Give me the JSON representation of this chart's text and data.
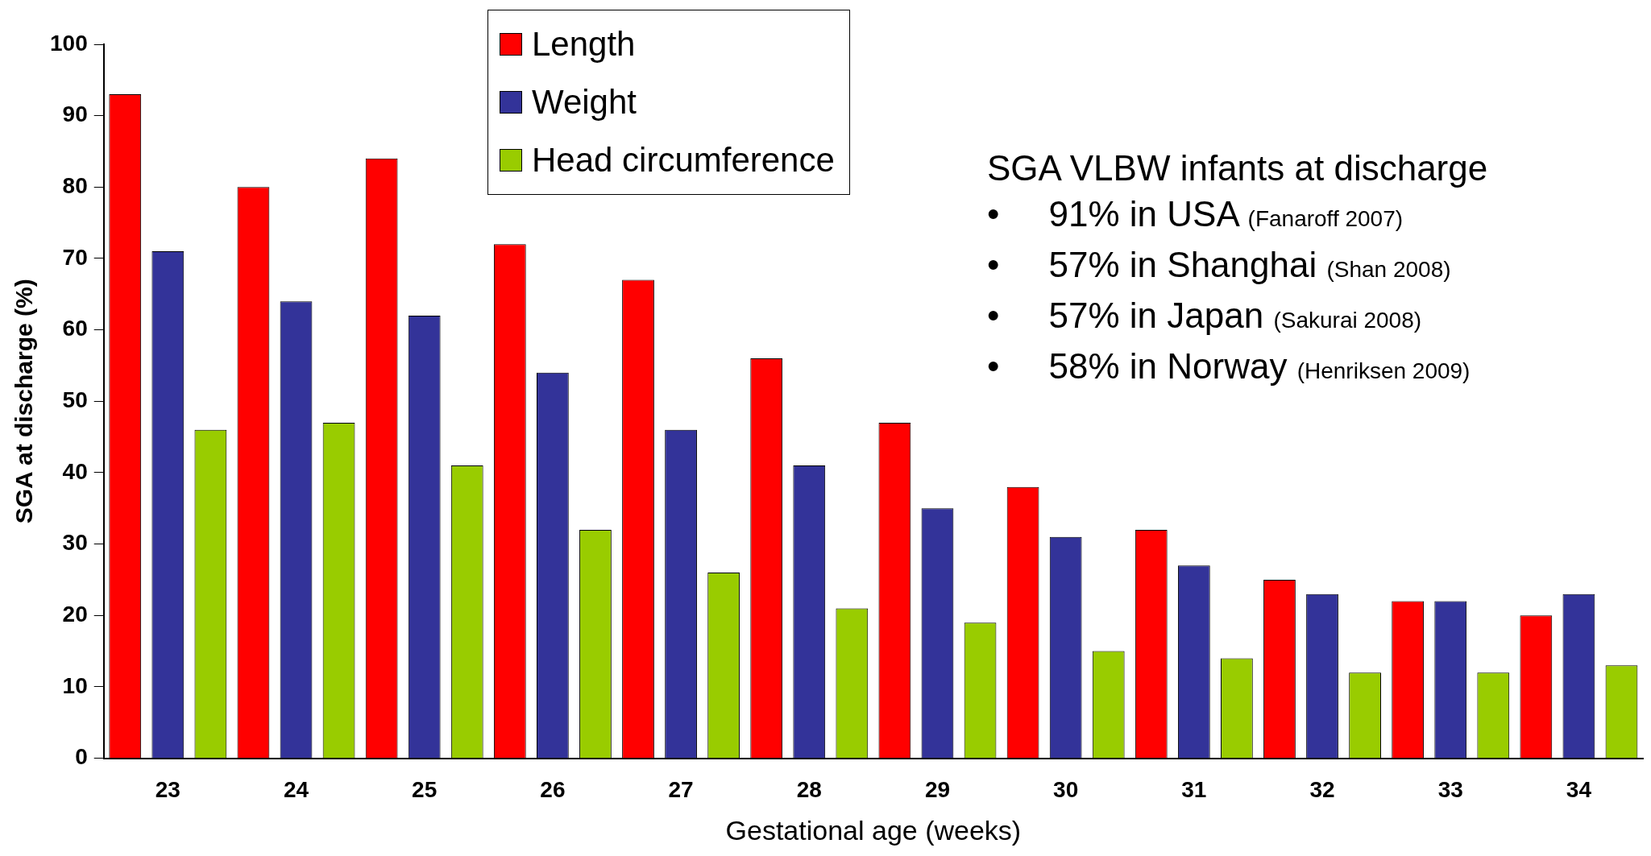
{
  "chart_data": {
    "type": "bar",
    "xlabel": "Gestational age (weeks)",
    "ylabel": "SGA at discharge (%)",
    "categories": [
      "23",
      "24",
      "25",
      "26",
      "27",
      "28",
      "29",
      "30",
      "31",
      "32",
      "33",
      "34"
    ],
    "series": [
      {
        "name": "Length",
        "color": "#ff0000",
        "values": [
          93,
          80,
          84,
          72,
          67,
          56,
          47,
          38,
          32,
          25,
          22,
          20
        ]
      },
      {
        "name": "Weight",
        "color": "#333399",
        "values": [
          71,
          64,
          62,
          54,
          46,
          41,
          35,
          31,
          27,
          23,
          22,
          23
        ]
      },
      {
        "name": "Head circumference",
        "color": "#99cc00",
        "values": [
          46,
          47,
          41,
          32,
          26,
          21,
          19,
          15,
          14,
          12,
          12,
          13
        ]
      }
    ],
    "ylim": [
      0,
      100
    ],
    "yticks": [
      0,
      10,
      20,
      30,
      40,
      50,
      60,
      70,
      80,
      90,
      100
    ],
    "grid": false,
    "legend": "top",
    "annotations": [
      "SGA VLBW infants at discharge",
      "•     91% in USA (Fanaroff 2007)",
      "•     57% in Shanghai (Shan 2008)",
      "•     57% in Japan (Sakurai 2008)",
      "•     58% in Norway (Henriksen 2009)"
    ]
  }
}
